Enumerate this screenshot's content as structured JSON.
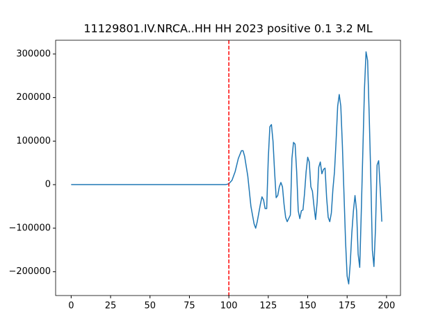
{
  "chart_data": {
    "type": "line",
    "title": "11129801.IV.NRCA..HH HH 2023 positive 0.1 3.2 ML",
    "x": [
      0,
      10,
      20,
      30,
      40,
      50,
      60,
      70,
      80,
      90,
      98,
      100,
      102,
      104,
      106,
      108,
      109,
      110,
      112,
      114,
      116,
      117,
      118,
      120,
      121,
      122,
      123,
      124,
      125,
      126,
      127,
      128,
      129,
      130,
      131,
      132,
      133,
      134,
      135,
      136,
      137,
      139,
      140,
      141,
      142,
      143,
      144,
      145,
      146,
      147,
      148,
      149,
      150,
      151,
      152,
      153,
      154,
      155,
      156,
      157,
      158,
      159,
      160,
      161,
      162,
      163,
      164,
      165,
      166,
      167,
      168,
      169,
      170,
      171,
      172,
      173,
      174,
      175,
      176,
      177,
      178,
      179,
      180,
      181,
      182,
      183,
      184,
      185,
      186,
      187,
      188,
      189,
      190,
      191,
      192,
      193,
      194,
      195,
      196,
      197
    ],
    "series": [
      {
        "name": "trace",
        "color": "#1f77b4",
        "values": [
          0,
          0,
          0,
          0,
          0,
          0,
          0,
          0,
          0,
          0,
          0,
          2000,
          10000,
          30000,
          60000,
          78000,
          78000,
          65000,
          20000,
          -50000,
          -90000,
          -100000,
          -85000,
          -45000,
          -28000,
          -35000,
          -55000,
          -55000,
          60000,
          133000,
          138000,
          100000,
          30000,
          -30000,
          -25000,
          -5000,
          5000,
          -5000,
          -45000,
          -75000,
          -85000,
          -70000,
          60000,
          97000,
          93000,
          30000,
          -60000,
          -78000,
          -60000,
          -58000,
          -20000,
          30000,
          63000,
          52000,
          -5000,
          -15000,
          -50000,
          -80000,
          -40000,
          40000,
          52000,
          25000,
          35000,
          38000,
          -30000,
          -75000,
          -85000,
          -65000,
          -10000,
          30000,
          100000,
          180000,
          207000,
          180000,
          90000,
          -20000,
          -130000,
          -210000,
          -228000,
          -180000,
          -110000,
          -60000,
          -25000,
          -60000,
          -160000,
          -190000,
          -60000,
          80000,
          220000,
          305000,
          285000,
          160000,
          20000,
          -150000,
          -188000,
          -100000,
          45000,
          55000,
          -10000,
          -85000
        ]
      }
    ],
    "vline": {
      "x": 100,
      "color": "#ff0000",
      "style": "dashed"
    },
    "xlim": [
      -9.85,
      208.85
    ],
    "ylim": [
      -254650,
      331650
    ],
    "xticks": [
      0,
      25,
      50,
      75,
      100,
      125,
      150,
      175,
      200
    ],
    "yticks": [
      {
        "value": -200000,
        "label": "−200000"
      },
      {
        "value": -100000,
        "label": "−100000"
      },
      0,
      100000,
      200000,
      300000
    ]
  }
}
